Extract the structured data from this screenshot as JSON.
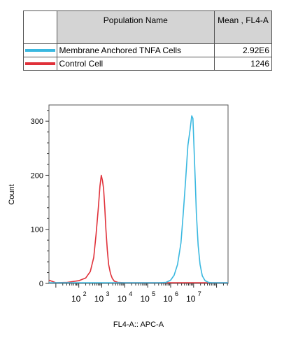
{
  "legend": {
    "col_name": "Population Name",
    "col_value": "Mean , FL4-A",
    "rows": [
      {
        "name": "Membrane Anchored TNFA Cells",
        "value": "2.92E6",
        "color": "#3ab8e0"
      },
      {
        "name": "Control Cell",
        "value": "1246",
        "color": "#e0313a"
      }
    ]
  },
  "chart_data": {
    "type": "line",
    "xlabel": "FL4-A:: APC-A",
    "ylabel": "Count",
    "xscale": "log",
    "xlim_log10": [
      0.7,
      8.5
    ],
    "ylim": [
      0,
      330
    ],
    "ytick_labels": [
      "0",
      "100",
      "200",
      "300"
    ],
    "yticks": [
      0,
      100,
      200,
      300
    ],
    "xtick_labels": [
      {
        "base": "10",
        "exp": "2",
        "value": 2
      },
      {
        "base": "10",
        "exp": "3",
        "value": 3
      },
      {
        "base": "10",
        "exp": "4",
        "value": 4
      },
      {
        "base": "10",
        "exp": "5",
        "value": 5
      },
      {
        "base": "10",
        "exp": "6",
        "value": 6
      },
      {
        "base": "10",
        "exp": "7",
        "value": 7
      }
    ],
    "series": [
      {
        "name": "Control Cell",
        "color": "#e0313a",
        "x_log10": [
          0.7,
          1.0,
          1.5,
          2.0,
          2.3,
          2.5,
          2.65,
          2.75,
          2.85,
          2.92,
          2.98,
          3.03,
          3.08,
          3.13,
          3.18,
          3.24,
          3.3,
          3.38,
          3.46,
          3.55,
          3.7,
          4.0,
          8.5
        ],
        "y": [
          6,
          1,
          2,
          5,
          10,
          22,
          48,
          90,
          140,
          180,
          200,
          190,
          175,
          140,
          100,
          62,
          35,
          18,
          9,
          4,
          2,
          1,
          0
        ]
      },
      {
        "name": "Membrane Anchored TNFA Cells",
        "color": "#3ab8e0",
        "x_log10": [
          0.7,
          5.5,
          5.8,
          6.0,
          6.15,
          6.3,
          6.45,
          6.55,
          6.65,
          6.75,
          6.85,
          6.92,
          6.97,
          7.02,
          7.08,
          7.12,
          7.2,
          7.28,
          7.38,
          7.5,
          7.65,
          7.8,
          8.5
        ],
        "y": [
          0,
          0,
          2,
          6,
          15,
          35,
          75,
          130,
          190,
          255,
          285,
          310,
          305,
          250,
          180,
          130,
          70,
          35,
          14,
          5,
          2,
          0,
          0
        ]
      }
    ]
  }
}
